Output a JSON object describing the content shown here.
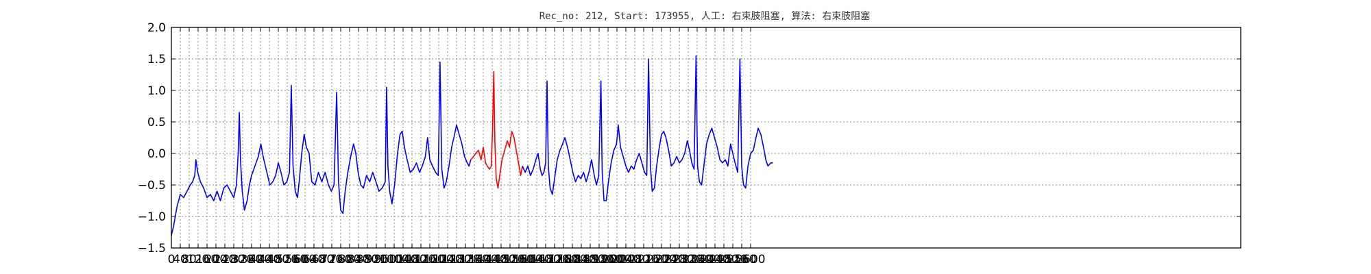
{
  "chart_data": {
    "type": "line",
    "title": "Rec_no: 212, Start: 173955, 人工: 右束肢阻塞, 算法: 右束肢阻塞",
    "xlim": [
      0,
      4800
    ],
    "ylim": [
      -1.5,
      2.0
    ],
    "grid": true,
    "x_ticks": [
      0,
      40,
      80,
      120,
      160,
      200,
      240,
      280,
      320,
      360,
      400,
      440,
      480,
      520,
      560,
      600,
      640,
      680,
      720,
      760,
      800,
      840,
      880,
      920,
      960,
      1000,
      1040,
      1080,
      1120,
      1160,
      1200,
      1240,
      1280,
      1320,
      1360,
      1400,
      1440,
      1480,
      1520,
      1560,
      1600,
      1640,
      1680,
      1720,
      1760,
      1800,
      1840,
      1880,
      1920,
      1960,
      2000,
      2040,
      2080,
      2120,
      2160,
      2200,
      2240,
      2280,
      2320,
      2360,
      2400,
      2440,
      2480,
      2520,
      2560,
      2600
    ],
    "y_ticks": [
      -1.5,
      -1.0,
      -0.5,
      0.0,
      0.5,
      1.0,
      1.5,
      2.0
    ],
    "y_tick_labels": [
      "−1.5",
      "−1.0",
      "−0.5",
      "0.0",
      "0.5",
      "1.0",
      "1.5",
      "2.0"
    ],
    "series": [
      {
        "color": "#0000ff",
        "points": [
          [
            0,
            -1.3
          ],
          [
            10,
            -1.15
          ],
          [
            25,
            -0.85
          ],
          [
            40,
            -0.65
          ],
          [
            55,
            -0.7
          ],
          [
            70,
            -0.6
          ],
          [
            85,
            -0.5
          ],
          [
            95,
            -0.45
          ],
          [
            105,
            -0.35
          ],
          [
            110,
            -0.1
          ],
          [
            118,
            -0.3
          ],
          [
            130,
            -0.45
          ],
          [
            145,
            -0.55
          ],
          [
            160,
            -0.7
          ],
          [
            175,
            -0.65
          ],
          [
            190,
            -0.75
          ],
          [
            205,
            -0.6
          ],
          [
            220,
            -0.75
          ],
          [
            235,
            -0.55
          ],
          [
            250,
            -0.5
          ],
          [
            265,
            -0.6
          ],
          [
            280,
            -0.7
          ],
          [
            292,
            -0.5
          ],
          [
            300,
            0.0
          ],
          [
            305,
            0.65
          ],
          [
            310,
            -0.1
          ],
          [
            318,
            -0.6
          ],
          [
            328,
            -0.9
          ],
          [
            340,
            -0.75
          ],
          [
            350,
            -0.5
          ],
          [
            360,
            -0.35
          ],
          [
            375,
            -0.2
          ],
          [
            390,
            -0.05
          ],
          [
            402,
            0.15
          ],
          [
            412,
            -0.05
          ],
          [
            422,
            -0.2
          ],
          [
            432,
            -0.35
          ],
          [
            442,
            -0.5
          ],
          [
            455,
            -0.45
          ],
          [
            468,
            -0.35
          ],
          [
            480,
            -0.15
          ],
          [
            492,
            -0.3
          ],
          [
            505,
            -0.5
          ],
          [
            518,
            -0.45
          ],
          [
            530,
            -0.3
          ],
          [
            538,
            1.08
          ],
          [
            546,
            -0.2
          ],
          [
            556,
            -0.6
          ],
          [
            566,
            -0.7
          ],
          [
            575,
            -0.4
          ],
          [
            585,
            0.0
          ],
          [
            596,
            0.3
          ],
          [
            606,
            0.1
          ],
          [
            618,
            0.0
          ],
          [
            630,
            -0.45
          ],
          [
            645,
            -0.5
          ],
          [
            660,
            -0.3
          ],
          [
            675,
            -0.45
          ],
          [
            690,
            -0.3
          ],
          [
            705,
            -0.5
          ],
          [
            718,
            -0.6
          ],
          [
            730,
            -0.5
          ],
          [
            742,
            0.97
          ],
          [
            750,
            -0.45
          ],
          [
            760,
            -0.9
          ],
          [
            770,
            -0.95
          ],
          [
            780,
            -0.6
          ],
          [
            792,
            -0.3
          ],
          [
            805,
            -0.05
          ],
          [
            818,
            0.15
          ],
          [
            828,
            0.0
          ],
          [
            838,
            -0.3
          ],
          [
            850,
            -0.5
          ],
          [
            862,
            -0.55
          ],
          [
            876,
            -0.35
          ],
          [
            890,
            -0.45
          ],
          [
            904,
            -0.3
          ],
          [
            918,
            -0.45
          ],
          [
            932,
            -0.6
          ],
          [
            946,
            -0.55
          ],
          [
            960,
            -0.45
          ],
          [
            966,
            1.05
          ],
          [
            972,
            -0.2
          ],
          [
            980,
            -0.6
          ],
          [
            990,
            -0.8
          ],
          [
            1002,
            -0.5
          ],
          [
            1015,
            0.0
          ],
          [
            1026,
            0.3
          ],
          [
            1036,
            0.35
          ],
          [
            1046,
            0.1
          ],
          [
            1058,
            -0.1
          ],
          [
            1072,
            -0.3
          ],
          [
            1086,
            -0.25
          ],
          [
            1100,
            -0.15
          ],
          [
            1114,
            -0.3
          ],
          [
            1126,
            -0.2
          ],
          [
            1140,
            -0.05
          ],
          [
            1150,
            0.25
          ],
          [
            1160,
            -0.1
          ],
          [
            1172,
            -0.2
          ],
          [
            1186,
            -0.3
          ],
          [
            1198,
            -0.35
          ],
          [
            1206,
            1.45
          ],
          [
            1214,
            -0.25
          ],
          [
            1224,
            -0.55
          ],
          [
            1234,
            -0.45
          ],
          [
            1246,
            -0.2
          ],
          [
            1258,
            0.1
          ],
          [
            1268,
            0.25
          ],
          [
            1280,
            0.45
          ],
          [
            1292,
            0.3
          ],
          [
            1304,
            0.15
          ],
          [
            1316,
            -0.05
          ],
          [
            1328,
            -0.15
          ],
          [
            1336,
            -0.2
          ],
          [
            1344,
            -0.1
          ]
        ]
      },
      {
        "color": "#ff0000",
        "points": [
          [
            1344,
            -0.1
          ],
          [
            1356,
            -0.05
          ],
          [
            1366,
            0.0
          ],
          [
            1378,
            0.05
          ],
          [
            1390,
            -0.1
          ],
          [
            1400,
            0.1
          ],
          [
            1410,
            -0.15
          ],
          [
            1418,
            -0.2
          ],
          [
            1428,
            -0.25
          ],
          [
            1436,
            -0.2
          ],
          [
            1442,
            0.4
          ],
          [
            1447,
            1.3
          ],
          [
            1452,
            0.2
          ],
          [
            1458,
            -0.4
          ],
          [
            1466,
            -0.55
          ],
          [
            1474,
            -0.35
          ],
          [
            1484,
            -0.1
          ],
          [
            1496,
            0.05
          ],
          [
            1508,
            0.2
          ],
          [
            1518,
            0.1
          ],
          [
            1528,
            0.35
          ],
          [
            1538,
            0.25
          ],
          [
            1548,
            0.05
          ],
          [
            1558,
            -0.15
          ],
          [
            1568,
            -0.35
          ],
          [
            1576,
            -0.2
          ]
        ]
      },
      {
        "color": "#0000ff",
        "points": [
          [
            1576,
            -0.2
          ],
          [
            1588,
            -0.3
          ],
          [
            1600,
            -0.2
          ],
          [
            1612,
            -0.35
          ],
          [
            1624,
            -0.25
          ],
          [
            1636,
            -0.1
          ],
          [
            1646,
            0.0
          ],
          [
            1656,
            -0.25
          ],
          [
            1664,
            -0.35
          ],
          [
            1672,
            -0.3
          ],
          [
            1680,
            -0.15
          ],
          [
            1686,
            1.15
          ],
          [
            1692,
            -0.2
          ],
          [
            1700,
            -0.55
          ],
          [
            1710,
            -0.65
          ],
          [
            1720,
            -0.4
          ],
          [
            1732,
            -0.1
          ],
          [
            1744,
            0.05
          ],
          [
            1756,
            0.15
          ],
          [
            1766,
            0.25
          ],
          [
            1778,
            0.1
          ],
          [
            1790,
            -0.1
          ],
          [
            1802,
            -0.3
          ],
          [
            1814,
            -0.45
          ],
          [
            1826,
            -0.35
          ],
          [
            1838,
            -0.4
          ],
          [
            1850,
            -0.3
          ],
          [
            1862,
            -0.45
          ],
          [
            1874,
            -0.3
          ],
          [
            1886,
            -0.1
          ],
          [
            1898,
            -0.35
          ],
          [
            1908,
            -0.5
          ],
          [
            1918,
            -0.35
          ],
          [
            1928,
            1.15
          ],
          [
            1934,
            -0.3
          ],
          [
            1942,
            -0.75
          ],
          [
            1952,
            -0.75
          ],
          [
            1962,
            -0.45
          ],
          [
            1974,
            -0.15
          ],
          [
            1986,
            0.05
          ],
          [
            1998,
            0.15
          ],
          [
            2006,
            0.45
          ],
          [
            2016,
            0.1
          ],
          [
            2028,
            -0.05
          ],
          [
            2040,
            -0.2
          ],
          [
            2052,
            -0.3
          ],
          [
            2064,
            -0.2
          ],
          [
            2076,
            -0.25
          ],
          [
            2088,
            -0.1
          ],
          [
            2100,
            0.0
          ],
          [
            2112,
            -0.15
          ],
          [
            2124,
            -0.3
          ],
          [
            2134,
            -0.35
          ],
          [
            2142,
            1.5
          ],
          [
            2150,
            -0.2
          ],
          [
            2158,
            -0.6
          ],
          [
            2168,
            -0.55
          ],
          [
            2178,
            -0.2
          ],
          [
            2190,
            0.1
          ],
          [
            2200,
            0.3
          ],
          [
            2210,
            0.35
          ],
          [
            2220,
            0.25
          ],
          [
            2232,
            0.05
          ],
          [
            2244,
            -0.2
          ],
          [
            2256,
            -0.15
          ],
          [
            2268,
            -0.05
          ],
          [
            2280,
            -0.15
          ],
          [
            2292,
            -0.1
          ],
          [
            2304,
            0.0
          ],
          [
            2316,
            0.2
          ],
          [
            2326,
            0.05
          ],
          [
            2336,
            -0.15
          ],
          [
            2346,
            -0.25
          ],
          [
            2355,
            1.55
          ],
          [
            2362,
            -0.2
          ],
          [
            2370,
            -0.45
          ],
          [
            2380,
            -0.5
          ],
          [
            2390,
            -0.2
          ],
          [
            2402,
            0.15
          ],
          [
            2414,
            0.3
          ],
          [
            2426,
            0.4
          ],
          [
            2438,
            0.25
          ],
          [
            2450,
            0.1
          ],
          [
            2462,
            -0.1
          ],
          [
            2474,
            -0.15
          ],
          [
            2486,
            -0.1
          ],
          [
            2498,
            -0.2
          ],
          [
            2510,
            0.15
          ],
          [
            2520,
            0.0
          ],
          [
            2530,
            -0.15
          ],
          [
            2542,
            -0.3
          ],
          [
            2552,
            1.5
          ],
          [
            2560,
            -0.2
          ],
          [
            2568,
            -0.5
          ],
          [
            2578,
            -0.55
          ],
          [
            2588,
            -0.2
          ],
          [
            2600,
            0.0
          ],
          [
            2612,
            0.05
          ],
          [
            2624,
            0.25
          ],
          [
            2634,
            0.4
          ],
          [
            2646,
            0.3
          ],
          [
            2658,
            0.1
          ],
          [
            2668,
            -0.1
          ],
          [
            2678,
            -0.2
          ],
          [
            2690,
            -0.15
          ],
          [
            2700,
            -0.15
          ]
        ]
      }
    ]
  }
}
